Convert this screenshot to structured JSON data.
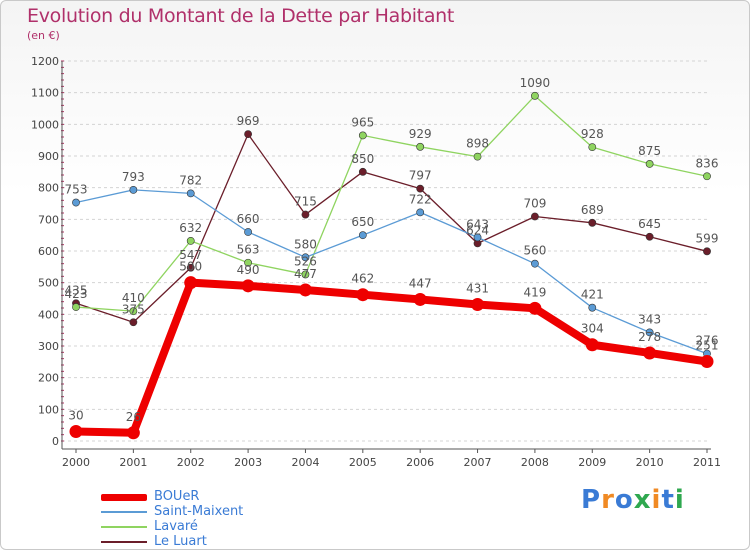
{
  "header": {
    "title": "Evolution du Montant de la Dette par Habitant",
    "subtitle": "(en €)"
  },
  "logo": {
    "text": "Proxiti",
    "colors": [
      "#3a7bd5",
      "#f08a24",
      "#3a7bd5",
      "#2fa84f",
      "#f08a24",
      "#3a7bd5",
      "#2fa84f"
    ]
  },
  "chart_data": {
    "type": "line",
    "title": "Evolution du Montant de la Dette par Habitant",
    "subtitle": "(en €)",
    "xlabel": "",
    "ylabel": "",
    "x": [
      "2000",
      "2001",
      "2002",
      "2003",
      "2004",
      "2005",
      "2006",
      "2007",
      "2008",
      "2009",
      "2010",
      "2011"
    ],
    "ylim": [
      0,
      1200
    ],
    "yticks": [
      0,
      100,
      200,
      300,
      400,
      500,
      600,
      700,
      800,
      900,
      1000,
      1100,
      1200
    ],
    "grid": "horizontal dashed",
    "legend_position": "bottom-left",
    "series": [
      {
        "name": "Le Luart",
        "color": "#6b1e2a",
        "values": [
          435,
          375,
          547,
          969,
          715,
          850,
          797,
          624,
          709,
          689,
          645,
          599
        ]
      },
      {
        "name": "Lavaré",
        "color": "#8fd460",
        "values": [
          423,
          410,
          632,
          563,
          526,
          965,
          929,
          898,
          1090,
          928,
          875,
          836
        ]
      },
      {
        "name": "Saint-Maixent",
        "color": "#5b9bd5",
        "values": [
          753,
          793,
          782,
          660,
          580,
          650,
          722,
          643,
          560,
          421,
          343,
          276
        ]
      },
      {
        "name": "BOUeR",
        "color": "#ee0000",
        "values": [
          30,
          26,
          500,
          490,
          477,
          462,
          447,
          431,
          419,
          304,
          278,
          251
        ]
      }
    ]
  },
  "legend": [
    {
      "name": "BOUeR",
      "color": "#ee0000"
    },
    {
      "name": "Saint-Maixent",
      "color": "#5b9bd5"
    },
    {
      "name": "Lavaré",
      "color": "#8fd460"
    },
    {
      "name": "Le Luart",
      "color": "#6b1e2a"
    }
  ]
}
